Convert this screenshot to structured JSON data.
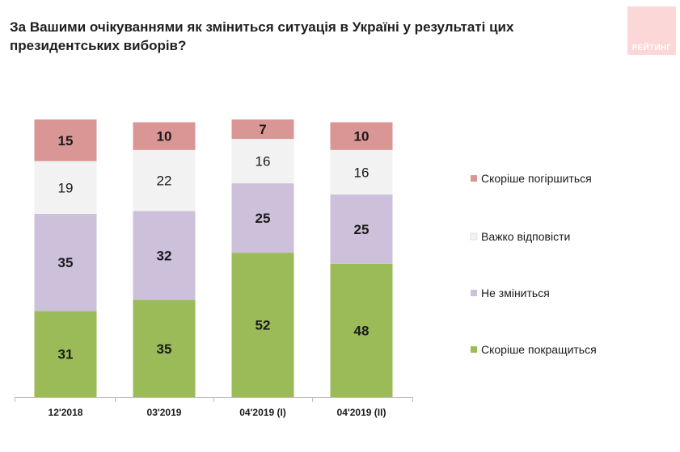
{
  "title": "За Вашими очікуваннями як зміниться ситуація в Україні у результаті цих президентських виборів?",
  "logo_text": "РЕЙТИНГ",
  "chart_data": {
    "type": "bar",
    "stacked": true,
    "categories": [
      "12'2018",
      "03'2019",
      "04'2019 (I)",
      "04'2019 (II)"
    ],
    "series": [
      {
        "name": "Скоріше покращиться",
        "values": [
          31,
          35,
          52,
          48
        ],
        "color": "#9bbb59",
        "bold": true
      },
      {
        "name": "Не зміниться",
        "values": [
          35,
          32,
          25,
          25
        ],
        "color": "#ccc0da",
        "bold": true
      },
      {
        "name": "Важко відповісти",
        "values": [
          19,
          22,
          16,
          16
        ],
        "color": "#f2f2f2",
        "bold": false
      },
      {
        "name": "Скоріше погіршиться",
        "values": [
          15,
          10,
          7,
          10
        ],
        "color": "#da9694",
        "bold": true
      }
    ],
    "legend_order": [
      "Скоріше погіршиться",
      "Важко відповісти",
      "Не зміниться",
      "Скоріше покращиться"
    ],
    "legend_position": "right",
    "ylim": [
      0,
      100
    ],
    "grid": false
  }
}
